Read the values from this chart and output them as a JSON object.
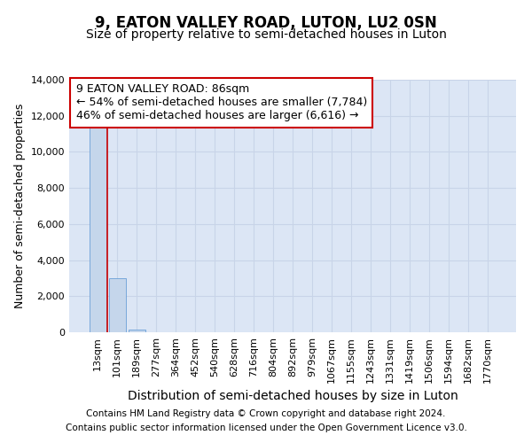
{
  "title": "9, EATON VALLEY ROAD, LUTON, LU2 0SN",
  "subtitle": "Size of property relative to semi-detached houses in Luton",
  "xlabel": "Distribution of semi-detached houses by size in Luton",
  "ylabel": "Number of semi-detached properties",
  "categories": [
    "13sqm",
    "101sqm",
    "189sqm",
    "277sqm",
    "364sqm",
    "452sqm",
    "540sqm",
    "628sqm",
    "716sqm",
    "804sqm",
    "892sqm",
    "979sqm",
    "1067sqm",
    "1155sqm",
    "1243sqm",
    "1331sqm",
    "1419sqm",
    "1506sqm",
    "1594sqm",
    "1682sqm",
    "1770sqm"
  ],
  "values": [
    11400,
    3000,
    150,
    0,
    0,
    0,
    0,
    0,
    0,
    0,
    0,
    0,
    0,
    0,
    0,
    0,
    0,
    0,
    0,
    0,
    0
  ],
  "bar_color": "#c5d6eb",
  "bar_edge_color": "#6a9fd8",
  "property_line_color": "#cc0000",
  "annotation_text_line1": "9 EATON VALLEY ROAD: 86sqm",
  "annotation_text_line2": "← 54% of semi-detached houses are smaller (7,784)",
  "annotation_text_line3": "46% of semi-detached houses are larger (6,616) →",
  "annotation_box_color": "#ffffff",
  "annotation_box_edge_color": "#cc0000",
  "ylim": [
    0,
    14000
  ],
  "yticks": [
    0,
    2000,
    4000,
    6000,
    8000,
    10000,
    12000,
    14000
  ],
  "grid_color": "#c8d4e8",
  "background_color": "#dce6f5",
  "footer_line1": "Contains HM Land Registry data © Crown copyright and database right 2024.",
  "footer_line2": "Contains public sector information licensed under the Open Government Licence v3.0.",
  "title_fontsize": 12,
  "subtitle_fontsize": 10,
  "xlabel_fontsize": 10,
  "ylabel_fontsize": 9,
  "tick_fontsize": 8,
  "annotation_fontsize": 9,
  "footer_fontsize": 7.5
}
